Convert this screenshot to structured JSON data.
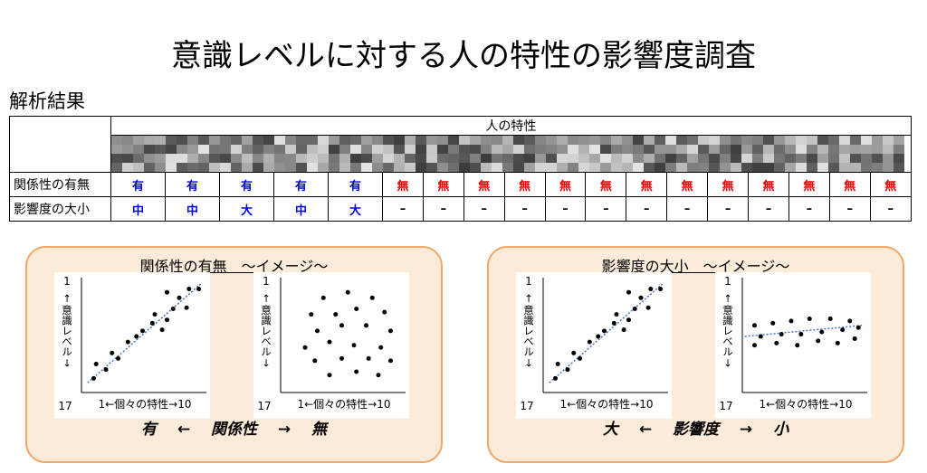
{
  "title": "意識レベルに対する人の特性の影響度調査",
  "subtitle": "解析結果",
  "table": {
    "header": "人の特性",
    "rows": [
      {
        "label": "関係性の有無",
        "cells": [
          "有",
          "有",
          "有",
          "有",
          "有",
          "無",
          "無",
          "無",
          "無",
          "無",
          "無",
          "無",
          "無",
          "無",
          "無",
          "無",
          "無",
          "無"
        ]
      },
      {
        "label": "影響度の大小",
        "cells": [
          "中",
          "中",
          "大",
          "中",
          "大",
          "–",
          "–",
          "–",
          "–",
          "–",
          "–",
          "–",
          "–",
          "–",
          "–",
          "–",
          "–",
          "–"
        ]
      }
    ]
  },
  "panels": [
    {
      "title": "関係性の有無　～イメージ～",
      "axes": {
        "y_top": "1",
        "y_label": "↑意識レベル↓",
        "y_bottom": "17",
        "x_label": "1←個々の特性→10"
      },
      "caption": "有　 ←　 関係性　 →　 無"
    },
    {
      "title": "影響度の大小　～イメージ～",
      "axes": {
        "y_top": "1",
        "y_label": "↑意識レベル↓",
        "y_bottom": "17",
        "x_label": "1←個々の特性→10"
      },
      "caption": "大　 ←　 影響度　 →　 小"
    }
  ]
}
